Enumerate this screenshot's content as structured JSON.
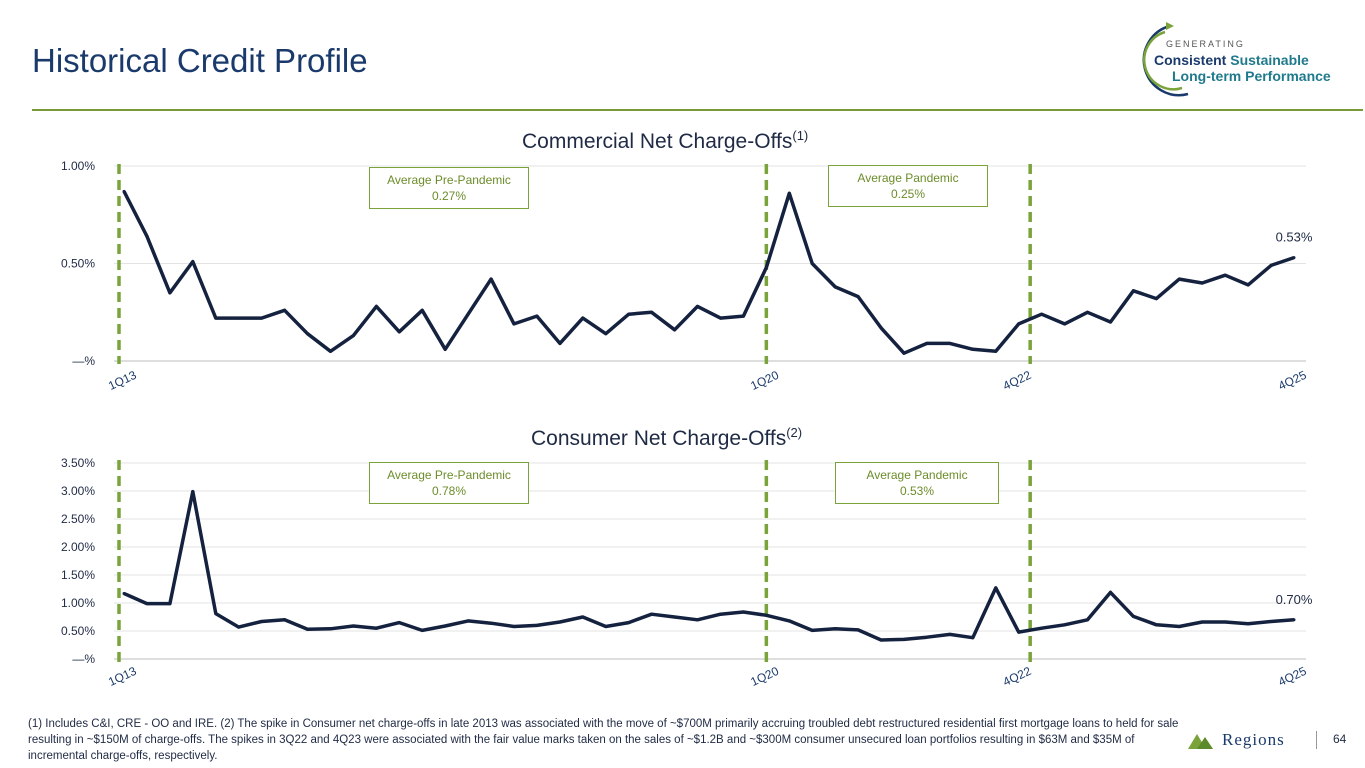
{
  "page": {
    "title": "Historical Credit Profile",
    "page_number": "64",
    "logo": {
      "generating": "GENERATING",
      "consistent": "Consistent",
      "sustainable": "Sustainable",
      "long_term": "Long-term Performance"
    },
    "brand": "Regions",
    "footnote": "(1) Includes C&I, CRE - OO and IRE.  (2) The spike in Consumer net charge-offs in late 2013 was associated with the move of ~$700M primarily accruing troubled debt restructured residential first mortgage loans to held for sale resulting in ~$150M of charge-offs. The spikes in 3Q22 and 4Q23 were associated with the fair value marks taken on the sales of ~$1.2B and ~$300M consumer unsecured loan portfolios resulting in $63M and $35M of incremental charge-offs, respectively."
  },
  "colors": {
    "line": "#15223f",
    "accent": "#7aa33a",
    "grid": "#e3e3e3",
    "title": "#1a3a6b"
  },
  "chart_data": [
    {
      "type": "line",
      "title": "Commercial Net Charge-Offs",
      "title_sup": "(1)",
      "ylim": [
        0,
        1.0
      ],
      "yticks": [
        0,
        0.5,
        1.0
      ],
      "ytick_labels": [
        "—%",
        "0.50%",
        "1.00%"
      ],
      "x_labels": [
        {
          "idx": 0,
          "label": "1Q13"
        },
        {
          "idx": 28,
          "label": "1Q20"
        },
        {
          "idx": 39,
          "label": "4Q22"
        },
        {
          "idx": 51,
          "label": "4Q25"
        }
      ],
      "vlines": [
        0,
        28,
        39.5
      ],
      "end_label": "0.53%",
      "annotations": [
        {
          "text1": "Average Pre-Pandemic",
          "text2": "0.27%"
        },
        {
          "text1": "Average Pandemic",
          "text2": "0.25%"
        }
      ],
      "values": [
        0.87,
        0.64,
        0.35,
        0.51,
        0.22,
        0.22,
        0.22,
        0.26,
        0.14,
        0.05,
        0.13,
        0.28,
        0.15,
        0.26,
        0.06,
        0.24,
        0.42,
        0.19,
        0.23,
        0.09,
        0.22,
        0.14,
        0.24,
        0.25,
        0.16,
        0.28,
        0.22,
        0.23,
        0.48,
        0.86,
        0.5,
        0.38,
        0.33,
        0.17,
        0.04,
        0.09,
        0.09,
        0.06,
        0.05,
        0.19,
        0.24,
        0.19,
        0.25,
        0.2,
        0.36,
        0.32,
        0.42,
        0.4,
        0.44,
        0.39,
        0.49,
        0.53
      ]
    },
    {
      "type": "line",
      "title": "Consumer Net Charge-Offs",
      "title_sup": "(2)",
      "ylim": [
        0,
        3.5
      ],
      "yticks": [
        0,
        0.5,
        1.0,
        1.5,
        2.0,
        2.5,
        3.0,
        3.5
      ],
      "ytick_labels": [
        "—%",
        "0.50%",
        "1.00%",
        "1.50%",
        "2.00%",
        "2.50%",
        "3.00%",
        "3.50%"
      ],
      "x_labels": [
        {
          "idx": 0,
          "label": "1Q13"
        },
        {
          "idx": 28,
          "label": "1Q20"
        },
        {
          "idx": 39,
          "label": "4Q22"
        },
        {
          "idx": 51,
          "label": "4Q25"
        }
      ],
      "vlines": [
        0,
        28,
        39.5
      ],
      "end_label": "0.70%",
      "annotations": [
        {
          "text1": "Average Pre-Pandemic",
          "text2": "0.78%"
        },
        {
          "text1": "Average Pandemic",
          "text2": "0.53%"
        }
      ],
      "values": [
        1.17,
        0.99,
        0.99,
        2.99,
        0.81,
        0.57,
        0.67,
        0.7,
        0.53,
        0.54,
        0.59,
        0.55,
        0.65,
        0.51,
        0.59,
        0.68,
        0.64,
        0.58,
        0.6,
        0.66,
        0.75,
        0.58,
        0.65,
        0.8,
        0.75,
        0.7,
        0.8,
        0.84,
        0.78,
        0.68,
        0.51,
        0.54,
        0.52,
        0.34,
        0.35,
        0.39,
        0.44,
        0.38,
        1.27,
        0.48,
        0.55,
        0.61,
        0.7,
        1.19,
        0.76,
        0.61,
        0.58,
        0.66,
        0.66,
        0.63,
        0.67,
        0.7
      ]
    }
  ]
}
